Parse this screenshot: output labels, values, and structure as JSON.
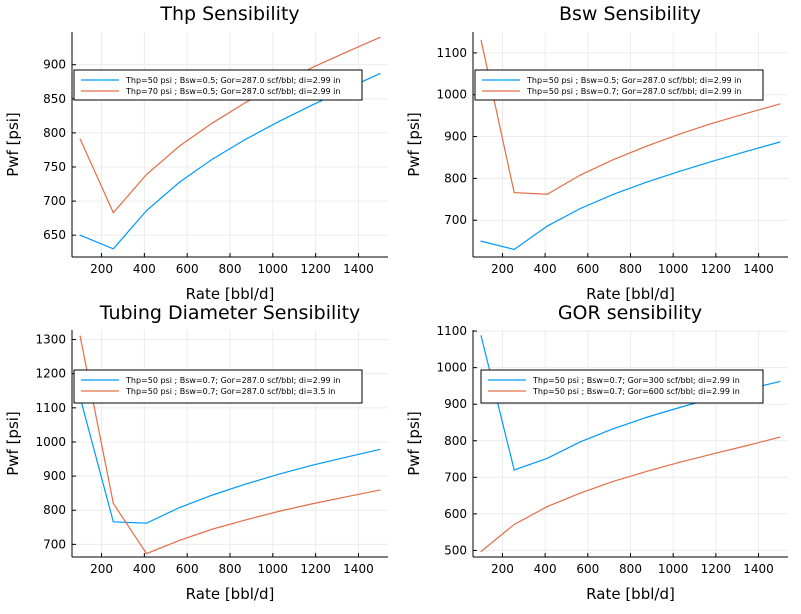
{
  "chart_data": [
    {
      "type": "line",
      "title": "Thp Sensibility",
      "xlabel": "Rate [bbl/d]",
      "ylabel": "Pwf [psi]",
      "xlim": [
        62,
        1538
      ],
      "ylim": [
        618,
        948
      ],
      "xticks": [
        200,
        400,
        600,
        800,
        1000,
        1200,
        1400
      ],
      "yticks": [
        650,
        700,
        750,
        800,
        850,
        900
      ],
      "grid": true,
      "legend_position": "top-left",
      "series": [
        {
          "name": "Thp=50 psi ; Bsw=0.5; Gor=287.0 scf/bbl; di=2.99 in",
          "color": "#009AFA",
          "x": [
            100,
            255,
            410,
            565,
            720,
            875,
            1030,
            1185,
            1340,
            1500
          ],
          "y": [
            650,
            630,
            686,
            728,
            762,
            791,
            817,
            841,
            864,
            887
          ]
        },
        {
          "name": "Thp=70 psi ; Bsw=0.5; Gor=287.0 scf/bbl; di=2.99 in",
          "color": "#E26F46",
          "x": [
            100,
            255,
            410,
            565,
            720,
            875,
            1030,
            1185,
            1340,
            1500
          ],
          "y": [
            791,
            683,
            739,
            781,
            815,
            845,
            871,
            896,
            918,
            940
          ]
        }
      ]
    },
    {
      "type": "line",
      "title": "Bsw Sensibility",
      "xlabel": "Rate [bbl/d]",
      "ylabel": "Pwf [psi]",
      "xlim": [
        62,
        1538
      ],
      "ylim": [
        612,
        1150
      ],
      "xticks": [
        200,
        400,
        600,
        800,
        1000,
        1200,
        1400
      ],
      "yticks": [
        700,
        800,
        900,
        1000,
        1100
      ],
      "grid": true,
      "legend_position": "top-right",
      "series": [
        {
          "name": "Thp=50 psi ; Bsw=0.5; Gor=287.0 scf/bbl; di=2.99 in",
          "color": "#009AFA",
          "x": [
            100,
            255,
            410,
            565,
            720,
            875,
            1030,
            1185,
            1340,
            1500
          ],
          "y": [
            650,
            630,
            686,
            728,
            762,
            791,
            817,
            841,
            864,
            887
          ]
        },
        {
          "name": "Thp=50 psi ; Bsw=0.7; Gor=287.0 scf/bbl; di=2.99 in",
          "color": "#E26F46",
          "x": [
            100,
            255,
            410,
            565,
            720,
            875,
            1030,
            1185,
            1340,
            1500
          ],
          "y": [
            1130,
            766,
            762,
            808,
            845,
            877,
            906,
            932,
            955,
            978
          ]
        }
      ]
    },
    {
      "type": "line",
      "title": "Tubing Diameter Sensibility",
      "xlabel": "Rate [bbl/d]",
      "ylabel": "Pwf [psi]",
      "xlim": [
        62,
        1538
      ],
      "ylim": [
        663,
        1328
      ],
      "xticks": [
        200,
        400,
        600,
        800,
        1000,
        1200,
        1400
      ],
      "yticks": [
        700,
        800,
        900,
        1000,
        1100,
        1200,
        1300
      ],
      "grid": true,
      "legend_position": "top-right",
      "series": [
        {
          "name": "Thp=50 psi ; Bsw=0.7; Gor=287.0 scf/bbl; di=2.99 in",
          "color": "#009AFA",
          "x": [
            100,
            255,
            410,
            565,
            720,
            875,
            1030,
            1185,
            1340,
            1500
          ],
          "y": [
            1130,
            766,
            762,
            808,
            845,
            877,
            906,
            932,
            955,
            978
          ]
        },
        {
          "name": "Thp=50 psi ; Bsw=0.7; Gor=287.0 scf/bbl; di=3.5 in",
          "color": "#E26F46",
          "x": [
            100,
            255,
            410,
            565,
            720,
            875,
            1030,
            1185,
            1340,
            1500
          ],
          "y": [
            1310,
            820,
            673,
            712,
            745,
            772,
            797,
            819,
            839,
            859
          ]
        }
      ]
    },
    {
      "type": "line",
      "title": "GOR sensibility",
      "xlabel": "Rate [bbl/d]",
      "ylabel": "Pwf [psi]",
      "xlim": [
        62,
        1538
      ],
      "ylim": [
        482,
        1103
      ],
      "xticks": [
        200,
        400,
        600,
        800,
        1000,
        1200,
        1400
      ],
      "yticks": [
        500,
        600,
        700,
        800,
        900,
        1000,
        1100
      ],
      "grid": true,
      "legend_position": "top-right",
      "series": [
        {
          "name": "Thp=50 psi ; Bsw=0.7; Gor=300 scf/bbl; di=2.99 in",
          "color": "#009AFA",
          "x": [
            100,
            255,
            410,
            565,
            720,
            875,
            1030,
            1185,
            1340,
            1500
          ],
          "y": [
            1087,
            720,
            752,
            797,
            833,
            864,
            891,
            916,
            940,
            962
          ]
        },
        {
          "name": "Thp=50 psi ; Bsw=0.7; Gor=600 scf/bbl; di=2.99 in",
          "color": "#E26F46",
          "x": [
            100,
            255,
            410,
            565,
            720,
            875,
            1030,
            1185,
            1340,
            1500
          ],
          "y": [
            497,
            571,
            620,
            657,
            689,
            716,
            741,
            764,
            786,
            810
          ]
        }
      ]
    }
  ]
}
